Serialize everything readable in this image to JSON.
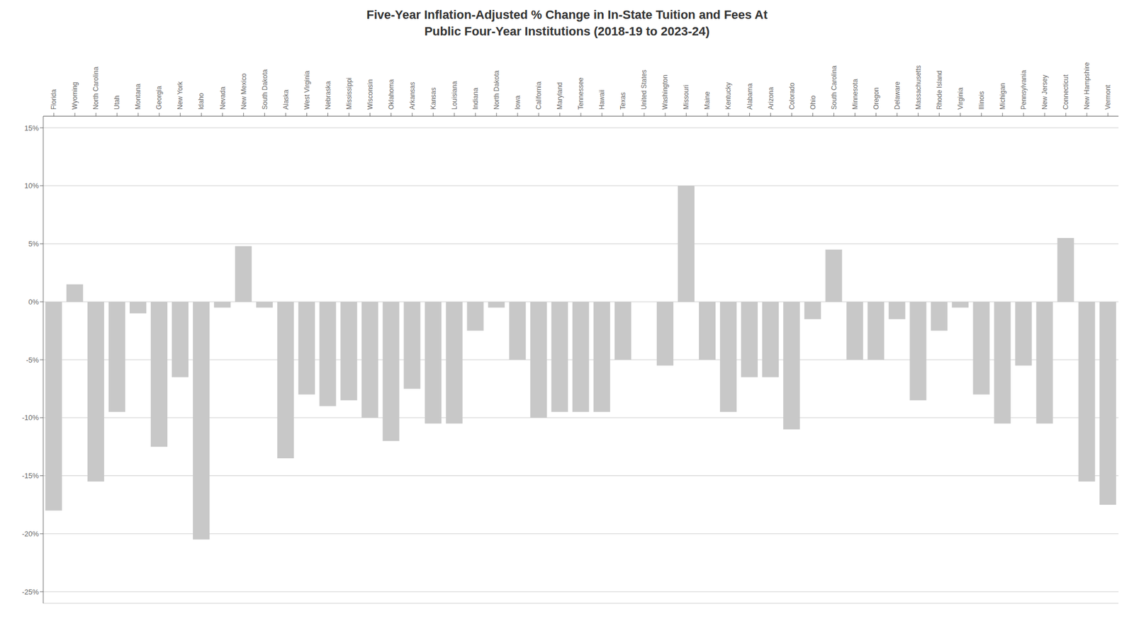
{
  "chart_data": {
    "type": "bar",
    "title": "Five-Year Inflation-Adjusted % Change in In-State Tuition and Fees At\nPublic Four-Year Institutions (2018-19 to 2023-24)",
    "categories": [
      "Florida",
      "Wyoming",
      "North Carolina",
      "Utah",
      "Montana",
      "Georgia",
      "New York",
      "Idaho",
      "Nevada",
      "New Mexico",
      "South Dakota",
      "Alaska",
      "West Virginia",
      "Nebraska",
      "Mississippi",
      "Wisconsin",
      "Oklahoma",
      "Arkansas",
      "Kansas",
      "Louisiana",
      "Indiana",
      "North Dakota",
      "Iowa",
      "California",
      "Maryland",
      "Tennessee",
      "Hawaii",
      "Texas",
      "United States",
      "Washington",
      "Missouri",
      "Maine",
      "Kentucky",
      "Alabama",
      "Arizona",
      "Colorado",
      "Ohio",
      "South Carolina",
      "Minnesota",
      "Oregon",
      "Delaware",
      "Massachusetts",
      "Rhode Island",
      "Virginia",
      "Illinois",
      "Michigan",
      "Pennsylvania",
      "New Jersey",
      "Connecticut",
      "New Hampshire",
      "Vermont"
    ],
    "values": [
      -18.0,
      1.5,
      -15.5,
      -9.5,
      -1.0,
      -12.5,
      -6.5,
      -20.5,
      -0.5,
      4.8,
      -0.5,
      -13.5,
      -8.0,
      -9.0,
      -8.5,
      -10.0,
      -12.0,
      -7.5,
      -10.5,
      -10.5,
      -2.5,
      -0.5,
      -5.0,
      -10.0,
      -9.5,
      -9.5,
      -9.5,
      -5.0,
      0.0,
      -5.5,
      10.0,
      -5.0,
      -9.5,
      -6.5,
      -6.5,
      -11.0,
      -1.5,
      4.5,
      -5.0,
      -5.0,
      -1.5,
      -8.5,
      -2.5,
      -0.5,
      -8.0,
      -10.5,
      -5.5,
      -10.5,
      5.5,
      -15.5,
      -17.5
    ],
    "color": "#c8c8c8",
    "ylim": [
      -26,
      16
    ],
    "yticks": [
      {
        "value": -25,
        "label": "-25%"
      },
      {
        "value": -20,
        "label": "-20%"
      },
      {
        "value": -15,
        "label": "-15%"
      },
      {
        "value": -10,
        "label": "-10%"
      },
      {
        "value": -5,
        "label": "-5%"
      },
      {
        "value": 0,
        "label": "0%"
      },
      {
        "value": 5,
        "label": "5%"
      },
      {
        "value": 10,
        "label": "10%"
      },
      {
        "value": 15,
        "label": "15%"
      }
    ],
    "grid": true
  }
}
